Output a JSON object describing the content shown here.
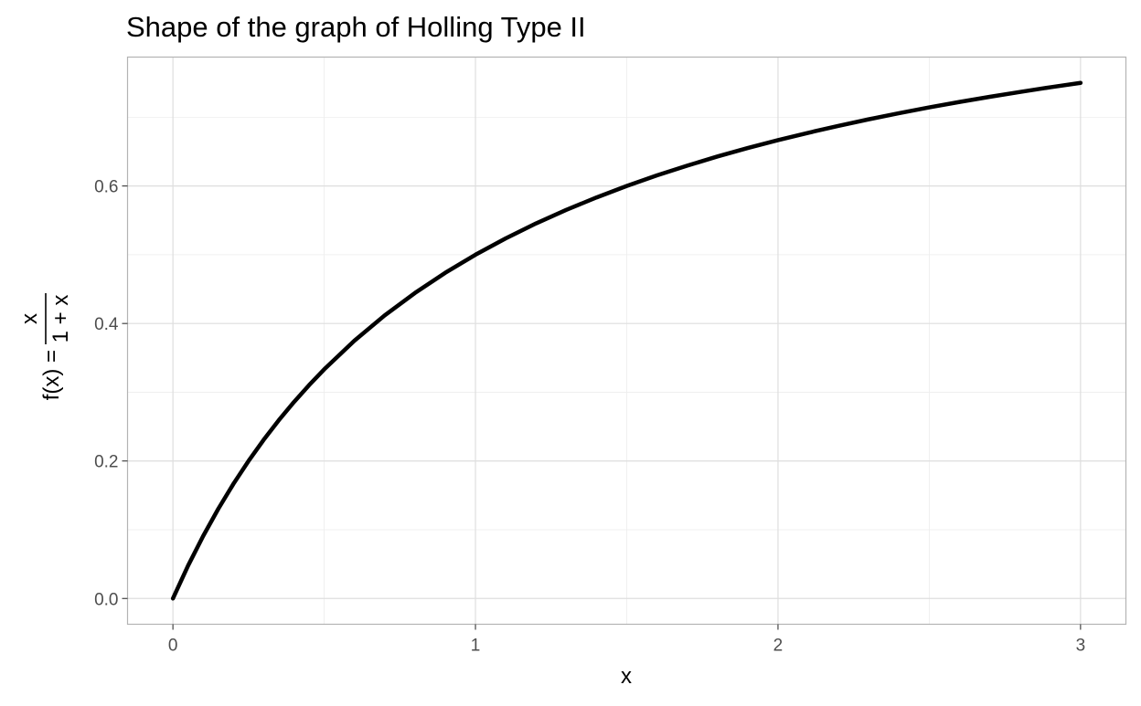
{
  "chart_data": {
    "type": "line",
    "title": "Shape of the graph of Holling Type II",
    "xlabel": "x",
    "ylabel": {
      "lhs": "f(x) =",
      "numerator": "x",
      "denominator": "1 + x"
    },
    "xlim": [
      -0.15,
      3.15
    ],
    "ylim": [
      -0.0375,
      0.7875
    ],
    "x_ticks": [
      0,
      1,
      2,
      3
    ],
    "x_tick_labels": [
      "0",
      "1",
      "2",
      "3"
    ],
    "x_minor_ticks": [
      0.5,
      1.5,
      2.5
    ],
    "y_ticks": [
      0.0,
      0.2,
      0.4,
      0.6
    ],
    "y_tick_labels": [
      "0.0",
      "0.2",
      "0.4",
      "0.6"
    ],
    "y_minor_ticks": [
      0.1,
      0.3,
      0.5,
      0.7
    ],
    "grid": true,
    "series": [
      {
        "name": "f(x) = x / (1 + x)",
        "x": [
          0,
          0.05,
          0.1,
          0.15,
          0.2,
          0.25,
          0.3,
          0.35,
          0.4,
          0.45,
          0.5,
          0.6,
          0.7,
          0.8,
          0.9,
          1.0,
          1.1,
          1.2,
          1.3,
          1.4,
          1.5,
          1.6,
          1.7,
          1.8,
          1.9,
          2.0,
          2.1,
          2.2,
          2.3,
          2.4,
          2.5,
          2.6,
          2.7,
          2.8,
          2.9,
          3.0
        ],
        "values": [
          0,
          0.0476,
          0.0909,
          0.1304,
          0.1667,
          0.2,
          0.2308,
          0.2593,
          0.2857,
          0.3103,
          0.3333,
          0.375,
          0.4118,
          0.4444,
          0.4737,
          0.5,
          0.5238,
          0.5455,
          0.5652,
          0.5833,
          0.6,
          0.6154,
          0.6296,
          0.6429,
          0.6552,
          0.6667,
          0.6774,
          0.6875,
          0.697,
          0.7059,
          0.7143,
          0.7222,
          0.7297,
          0.7368,
          0.7436,
          0.75
        ],
        "color": "#000000"
      }
    ]
  },
  "colors": {
    "background": "#ffffff",
    "panel_border": "#b3b3b3",
    "grid_major": "#dedede",
    "grid_minor": "#ededed",
    "tick_text": "#4d4d4d",
    "line": "#000000"
  }
}
